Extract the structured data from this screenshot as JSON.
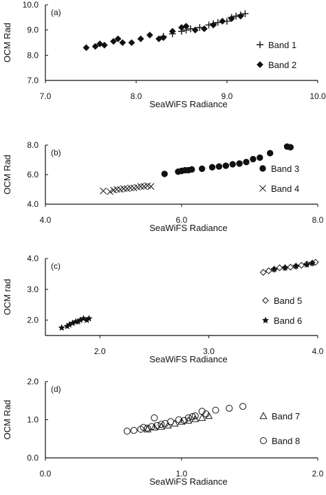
{
  "chart_data": [
    {
      "type": "scatter",
      "panel_label": "(a)",
      "xlabel": "SeaWiFS Radiance",
      "ylabel": "OCM Rad",
      "xlim": [
        7.0,
        10.0
      ],
      "ylim": [
        7.0,
        10.0
      ],
      "xticks": [
        "7.0",
        "8.0",
        "9.0",
        "10.0"
      ],
      "yticks": [
        "7.0",
        "8.0",
        "9.0",
        "10.0"
      ],
      "legend": "right",
      "series": [
        {
          "name": "Band 1",
          "marker": "plus",
          "points": [
            [
              8.3,
              8.75
            ],
            [
              8.4,
              8.85
            ],
            [
              8.5,
              8.95
            ],
            [
              8.6,
              9.05
            ],
            [
              8.7,
              9.1
            ],
            [
              8.8,
              9.2
            ],
            [
              8.9,
              9.3
            ],
            [
              9.0,
              9.35
            ],
            [
              9.05,
              9.5
            ],
            [
              9.1,
              9.55
            ],
            [
              9.15,
              9.6
            ],
            [
              9.2,
              9.65
            ],
            [
              8.85,
              9.25
            ],
            [
              8.55,
              9.0
            ]
          ]
        },
        {
          "name": "Band 2",
          "marker": "diamond",
          "points": [
            [
              7.45,
              8.3
            ],
            [
              7.55,
              8.35
            ],
            [
              7.6,
              8.45
            ],
            [
              7.65,
              8.4
            ],
            [
              7.75,
              8.55
            ],
            [
              7.8,
              8.65
            ],
            [
              7.85,
              8.5
            ],
            [
              7.95,
              8.5
            ],
            [
              8.05,
              8.65
            ],
            [
              8.15,
              8.8
            ],
            [
              8.25,
              8.65
            ],
            [
              8.3,
              8.7
            ],
            [
              8.4,
              8.95
            ],
            [
              8.5,
              9.1
            ],
            [
              8.55,
              9.15
            ],
            [
              8.65,
              9.0
            ],
            [
              8.75,
              9.05
            ],
            [
              8.85,
              9.2
            ],
            [
              8.95,
              9.35
            ],
            [
              9.05,
              9.45
            ],
            [
              9.15,
              9.55
            ]
          ]
        }
      ]
    },
    {
      "type": "scatter",
      "panel_label": "(b)",
      "xlabel": "SeaWiFS Radiance",
      "ylabel": "OCM Rad",
      "xlim": [
        4.0,
        8.0
      ],
      "ylim": [
        4.0,
        8.0
      ],
      "xticks": [
        "4.0",
        "6.0",
        "8.0"
      ],
      "yticks": [
        "4.0",
        "6.0",
        "8.0"
      ],
      "legend": "right",
      "series": [
        {
          "name": "Band 3",
          "marker": "circle",
          "points": [
            [
              5.75,
              6.05
            ],
            [
              5.95,
              6.2
            ],
            [
              6.0,
              6.25
            ],
            [
              6.05,
              6.3
            ],
            [
              6.1,
              6.3
            ],
            [
              6.15,
              6.35
            ],
            [
              6.3,
              6.4
            ],
            [
              6.45,
              6.5
            ],
            [
              6.55,
              6.55
            ],
            [
              6.65,
              6.6
            ],
            [
              6.75,
              6.7
            ],
            [
              6.85,
              6.75
            ],
            [
              6.95,
              6.85
            ],
            [
              7.05,
              7.05
            ],
            [
              7.15,
              7.15
            ],
            [
              7.3,
              7.45
            ],
            [
              7.55,
              7.9
            ],
            [
              7.6,
              7.85
            ]
          ]
        },
        {
          "name": "Band 4",
          "marker": "cross",
          "points": [
            [
              4.85,
              4.9
            ],
            [
              4.95,
              4.85
            ],
            [
              5.0,
              4.95
            ],
            [
              5.05,
              5.0
            ],
            [
              5.1,
              5.0
            ],
            [
              5.15,
              5.05
            ],
            [
              5.2,
              5.05
            ],
            [
              5.25,
              5.1
            ],
            [
              5.3,
              5.1
            ],
            [
              5.35,
              5.15
            ],
            [
              5.4,
              5.2
            ],
            [
              5.45,
              5.2
            ],
            [
              5.5,
              5.25
            ],
            [
              5.55,
              5.2
            ]
          ]
        }
      ]
    },
    {
      "type": "scatter",
      "panel_label": "(c)",
      "xlabel": "SeaWiFS Radiance",
      "ylabel": "OCM rad",
      "xlim": [
        1.5,
        4.0
      ],
      "ylim": [
        1.5,
        4.0
      ],
      "xticks": [
        "2.0",
        "3.0",
        "4.0"
      ],
      "yticks": [
        "2.0",
        "3.0",
        "4.0"
      ],
      "legend": "right",
      "series": [
        {
          "name": "Band 5",
          "marker": "diamond-open",
          "points": [
            [
              3.5,
              3.55
            ],
            [
              3.55,
              3.6
            ],
            [
              3.6,
              3.65
            ],
            [
              3.65,
              3.7
            ],
            [
              3.7,
              3.7
            ],
            [
              3.75,
              3.72
            ],
            [
              3.8,
              3.75
            ],
            [
              3.85,
              3.78
            ],
            [
              3.9,
              3.82
            ],
            [
              3.95,
              3.85
            ],
            [
              3.98,
              3.88
            ]
          ]
        },
        {
          "name": "Band 6",
          "marker": "star",
          "points": [
            [
              1.65,
              1.75
            ],
            [
              1.7,
              1.8
            ],
            [
              1.72,
              1.85
            ],
            [
              1.75,
              1.9
            ],
            [
              1.78,
              1.95
            ],
            [
              1.8,
              1.95
            ],
            [
              1.82,
              2.0
            ],
            [
              1.85,
              2.05
            ],
            [
              1.88,
              2.0
            ],
            [
              1.9,
              2.05
            ],
            [
              3.6,
              3.65
            ],
            [
              3.7,
              3.7
            ],
            [
              3.8,
              3.75
            ],
            [
              3.9,
              3.8
            ],
            [
              3.95,
              3.85
            ]
          ]
        }
      ]
    },
    {
      "type": "scatter",
      "panel_label": "(d)",
      "xlabel": "SeaWiFS Radiance",
      "ylabel": "OCM Rad",
      "xlim": [
        0.0,
        2.0
      ],
      "ylim": [
        0.0,
        2.0
      ],
      "xticks": [
        "0.0",
        "1.0",
        "2.0"
      ],
      "yticks": [
        "0.0",
        "1.0",
        "2.0"
      ],
      "legend": "right",
      "series": [
        {
          "name": "Band 7",
          "marker": "triangle-open",
          "points": [
            [
              0.75,
              0.75
            ],
            [
              0.8,
              0.8
            ],
            [
              0.85,
              0.82
            ],
            [
              0.9,
              0.85
            ],
            [
              0.95,
              0.9
            ],
            [
              1.0,
              0.95
            ],
            [
              1.05,
              0.98
            ],
            [
              1.1,
              1.02
            ],
            [
              1.15,
              1.05
            ],
            [
              1.2,
              1.1
            ]
          ]
        },
        {
          "name": "Band 8",
          "marker": "circle-open",
          "points": [
            [
              0.6,
              0.7
            ],
            [
              0.65,
              0.72
            ],
            [
              0.7,
              0.75
            ],
            [
              0.72,
              0.8
            ],
            [
              0.75,
              0.78
            ],
            [
              0.78,
              0.82
            ],
            [
              0.8,
              1.05
            ],
            [
              0.82,
              0.85
            ],
            [
              0.85,
              0.88
            ],
            [
              0.88,
              0.9
            ],
            [
              0.92,
              0.95
            ],
            [
              0.98,
              1.0
            ],
            [
              1.02,
              0.98
            ],
            [
              1.05,
              1.05
            ],
            [
              1.08,
              1.08
            ],
            [
              1.1,
              1.1
            ],
            [
              1.15,
              1.22
            ],
            [
              1.18,
              1.15
            ],
            [
              1.25,
              1.25
            ],
            [
              1.35,
              1.3
            ],
            [
              1.45,
              1.35
            ]
          ]
        }
      ]
    }
  ]
}
